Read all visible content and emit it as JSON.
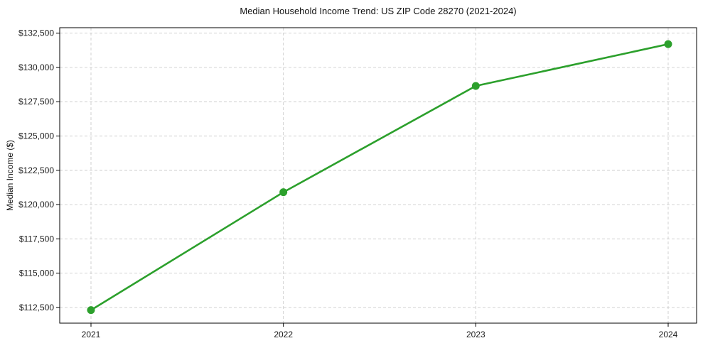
{
  "chart_data": {
    "type": "line",
    "title": "Median Household Income Trend: US ZIP Code 28270 (2021-2024)",
    "xlabel": "",
    "ylabel": "Median Income ($)",
    "categories": [
      "2021",
      "2022",
      "2023",
      "2024"
    ],
    "series": [
      {
        "name": "Median Household Income",
        "values": [
          112300,
          120900,
          128650,
          131700
        ]
      }
    ],
    "yticks": [
      {
        "value": 112500,
        "label": "$112,500"
      },
      {
        "value": 115000,
        "label": "$115,000"
      },
      {
        "value": 117500,
        "label": "$117,500"
      },
      {
        "value": 120000,
        "label": "$120,000"
      },
      {
        "value": 122500,
        "label": "$122,500"
      },
      {
        "value": 125000,
        "label": "$125,000"
      },
      {
        "value": 127500,
        "label": "$127,500"
      },
      {
        "value": 130000,
        "label": "$130,000"
      },
      {
        "value": 132500,
        "label": "$132,500"
      }
    ],
    "ylim": [
      111350,
      132900
    ],
    "grid": true,
    "grid_style": "dashed",
    "legend_position": "none",
    "line_color": "#2ca02c",
    "marker_color": "#2ca02c",
    "grid_color": "#cccccc",
    "axis_color": "#000000",
    "text_color": "#1a1a1a"
  }
}
